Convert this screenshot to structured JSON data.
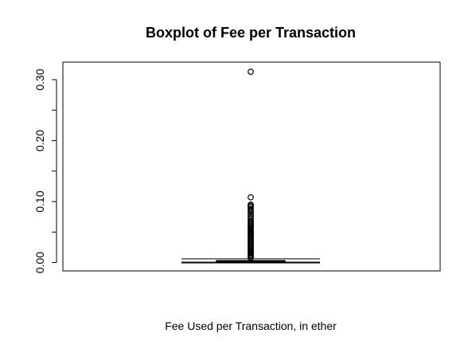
{
  "chart_data": {
    "type": "boxplot",
    "title": "Boxplot of Fee per Transaction",
    "xlabel": "Fee Used per Transaction, in ether",
    "ylabel": "",
    "ylim": [
      -0.012,
      0.318
    ],
    "yticks": [
      0.0,
      0.1,
      0.2,
      0.3
    ],
    "yticks_minor": [
      0.05,
      0.15,
      0.25
    ],
    "ytick_labels": [
      "0.00",
      "0.10",
      "0.20",
      "0.30"
    ],
    "grid": false,
    "box": {
      "whisker_low": 0.0,
      "q1": 0.0015,
      "median": 0.002,
      "q3": 0.003,
      "whisker_high": 0.006
    },
    "outliers": [
      0.313,
      0.107,
      0.095,
      0.093,
      0.091,
      0.088,
      0.085,
      0.082,
      0.078,
      0.075,
      0.072,
      0.068,
      0.066,
      0.064,
      0.062,
      0.06,
      0.058,
      0.056,
      0.054,
      0.052,
      0.05,
      0.048,
      0.046,
      0.044,
      0.042,
      0.04,
      0.038,
      0.036,
      0.034,
      0.032,
      0.03,
      0.028,
      0.026,
      0.024,
      0.022,
      0.02,
      0.018,
      0.016,
      0.014,
      0.012,
      0.01,
      0.008
    ]
  }
}
